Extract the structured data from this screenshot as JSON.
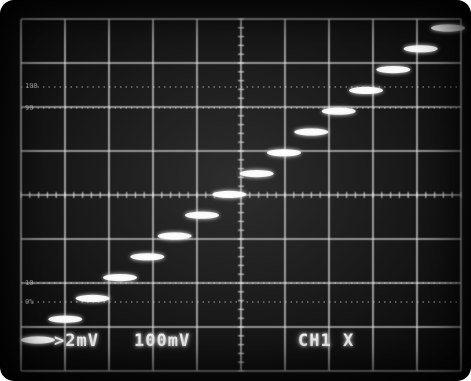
{
  "readouts": {
    "ch1_scale": ">2mV",
    "ch2_scale": "100mV",
    "mode": "CH1 X"
  },
  "graticule_markers": {
    "top_100": "100",
    "top_90": "90",
    "bottom_10": "10",
    "bottom_0": "0%"
  },
  "colors": {
    "screen": "#171717",
    "graticule": "#e8e8e8",
    "trace": "#ffffff",
    "text": "#f2f2f2"
  },
  "trace_levels": [
    0,
    1,
    2,
    3,
    4,
    5,
    6,
    7,
    8,
    9,
    10,
    11,
    12,
    13,
    14,
    15
  ]
}
